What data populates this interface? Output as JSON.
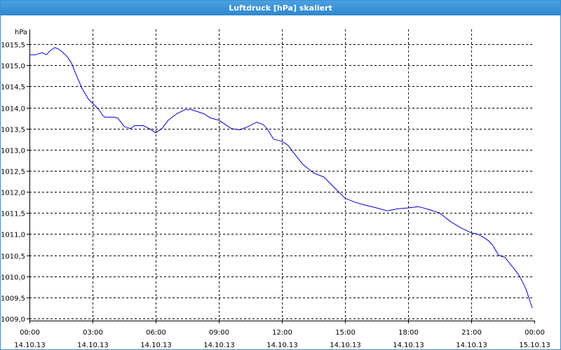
{
  "window": {
    "title": "Luftdruck [hPa] skaliert"
  },
  "chart_data": {
    "type": "line",
    "title": "Luftdruck [hPa] skaliert",
    "ylabel": "hPa",
    "xlabel": "",
    "ylim": [
      1008.95,
      1015.85
    ],
    "xlim_hours": [
      0,
      24
    ],
    "grid": true,
    "legend": "none",
    "colors": {
      "line": "#0000cc",
      "grid": "#000000",
      "axis": "#000000"
    },
    "y_ticks": [
      {
        "value": 1009.0,
        "label": "1009,0"
      },
      {
        "value": 1009.5,
        "label": "1009,5"
      },
      {
        "value": 1010.0,
        "label": "1010,0"
      },
      {
        "value": 1010.5,
        "label": "1010,5"
      },
      {
        "value": 1011.0,
        "label": "1011,0"
      },
      {
        "value": 1011.5,
        "label": "1011,5"
      },
      {
        "value": 1012.0,
        "label": "1012,0"
      },
      {
        "value": 1012.5,
        "label": "1012,5"
      },
      {
        "value": 1013.0,
        "label": "1013,0"
      },
      {
        "value": 1013.5,
        "label": "1013,5"
      },
      {
        "value": 1014.0,
        "label": "1014,0"
      },
      {
        "value": 1014.5,
        "label": "1014,5"
      },
      {
        "value": 1015.0,
        "label": "1015,0"
      },
      {
        "value": 1015.5,
        "label": "1015,5"
      }
    ],
    "x_ticks": [
      {
        "hour": 0,
        "time": "00:00",
        "date": "14.10.13"
      },
      {
        "hour": 3,
        "time": "03:00",
        "date": "14.10.13"
      },
      {
        "hour": 6,
        "time": "06:00",
        "date": "14.10.13"
      },
      {
        "hour": 9,
        "time": "09:00",
        "date": "14.10.13"
      },
      {
        "hour": 12,
        "time": "12:00",
        "date": "14.10.13"
      },
      {
        "hour": 15,
        "time": "15:00",
        "date": "14.10.13"
      },
      {
        "hour": 18,
        "time": "18:00",
        "date": "14.10.13"
      },
      {
        "hour": 21,
        "time": "21:00",
        "date": "14.10.13"
      },
      {
        "hour": 24,
        "time": "00:00",
        "date": "15.10.13"
      }
    ],
    "series": [
      {
        "x_hours": [
          0,
          0.3,
          0.6,
          0.8,
          1.0,
          1.2,
          1.4,
          1.6,
          1.8,
          2.0,
          2.2,
          2.5,
          2.8,
          3.0,
          3.3,
          3.5,
          3.6,
          3.8,
          4.0,
          4.2,
          4.5,
          4.8,
          5.0,
          5.4,
          5.7,
          6.0,
          6.3,
          6.6,
          7.0,
          7.4,
          7.7,
          8.0,
          8.3,
          8.6,
          9.0,
          9.3,
          9.6,
          10.0,
          10.4,
          10.8,
          11.1,
          11.3,
          11.6,
          12.0,
          12.3,
          12.6,
          13.0,
          13.5,
          14.0,
          14.5,
          15.0,
          15.5,
          16.0,
          16.5,
          17.0,
          17.5,
          18.0,
          18.5,
          19.0,
          19.5,
          20.0,
          20.5,
          21.0,
          21.3,
          21.5,
          21.8,
          22.0,
          22.3,
          22.6,
          23.0,
          23.3,
          23.6,
          23.9
        ],
        "values": [
          1015.25,
          1015.25,
          1015.3,
          1015.25,
          1015.35,
          1015.42,
          1015.38,
          1015.3,
          1015.2,
          1015.05,
          1014.8,
          1014.45,
          1014.2,
          1014.1,
          1013.95,
          1013.8,
          1013.77,
          1013.77,
          1013.77,
          1013.75,
          1013.55,
          1013.5,
          1013.57,
          1013.57,
          1013.5,
          1013.4,
          1013.5,
          1013.7,
          1013.85,
          1013.95,
          1013.95,
          1013.9,
          1013.85,
          1013.75,
          1013.7,
          1013.6,
          1013.5,
          1013.47,
          1013.55,
          1013.65,
          1013.6,
          1013.5,
          1013.25,
          1013.2,
          1013.1,
          1012.9,
          1012.65,
          1012.45,
          1012.35,
          1012.1,
          1011.85,
          1011.75,
          1011.68,
          1011.62,
          1011.55,
          1011.6,
          1011.62,
          1011.65,
          1011.58,
          1011.5,
          1011.3,
          1011.15,
          1011.03,
          1011.0,
          1010.95,
          1010.85,
          1010.75,
          1010.5,
          1010.45,
          1010.2,
          1010.0,
          1009.7,
          1009.25
        ]
      }
    ]
  }
}
